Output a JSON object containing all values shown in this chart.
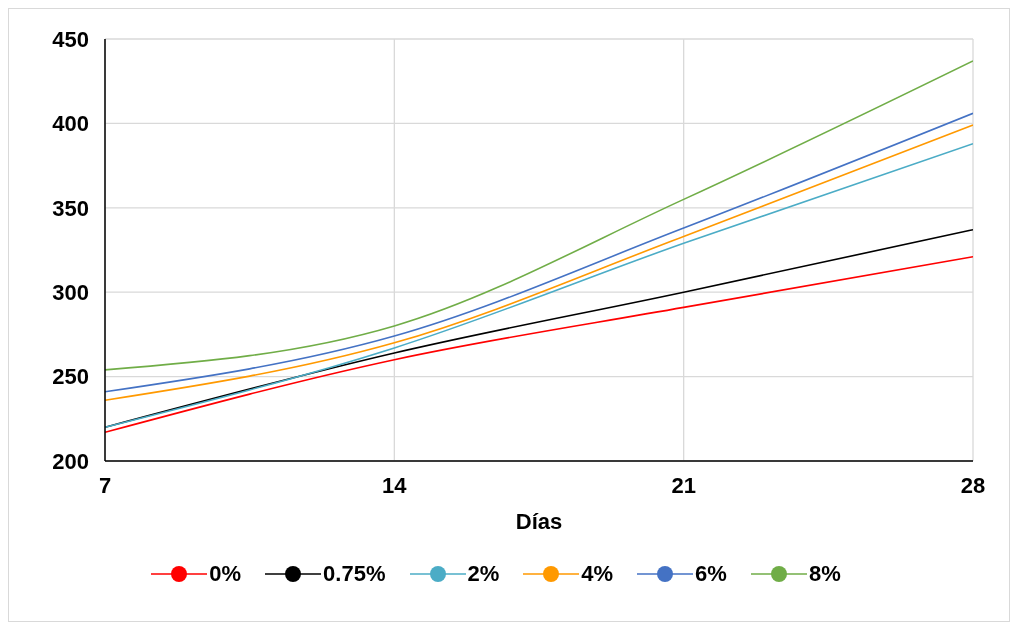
{
  "chart_data": {
    "type": "line",
    "xlabel": "Días",
    "x": [
      7,
      14,
      21,
      28
    ],
    "xlim": [
      7,
      28
    ],
    "xticks": [
      7,
      14,
      21,
      28
    ],
    "ylim": [
      200,
      450
    ],
    "yticks": [
      200,
      250,
      300,
      350,
      400,
      450
    ],
    "grid": true,
    "legend": "bottom",
    "marker": "none",
    "line_style": "solid",
    "series": [
      {
        "name": "0%",
        "color": "#ff0000",
        "values": [
          217,
          260,
          291,
          321
        ]
      },
      {
        "name": "0.75%",
        "color": "#000000",
        "values": [
          220,
          264,
          300,
          337
        ]
      },
      {
        "name": "2%",
        "color": "#4bacc6",
        "values": [
          220,
          267,
          329,
          388
        ]
      },
      {
        "name": "4%",
        "color": "#ff9900",
        "values": [
          236,
          270,
          333,
          399
        ]
      },
      {
        "name": "6%",
        "color": "#4472c4",
        "values": [
          241,
          274,
          338,
          406
        ]
      },
      {
        "name": "8%",
        "color": "#70ad47",
        "values": [
          254,
          280,
          355,
          437
        ]
      }
    ]
  }
}
